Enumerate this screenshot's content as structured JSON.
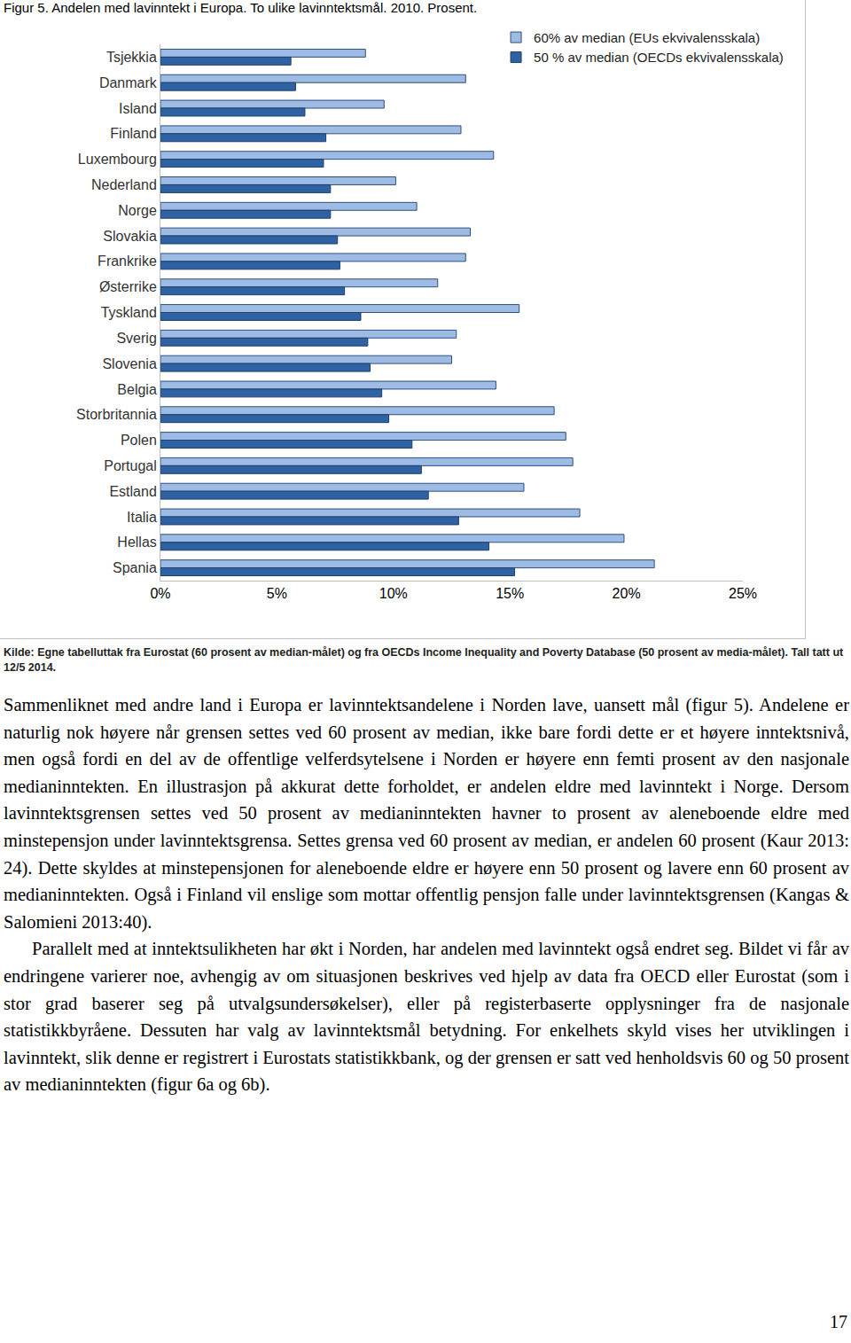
{
  "chart_data": {
    "type": "bar",
    "orientation": "horizontal",
    "title": "Figur 5. Andelen med lavinntekt i Europa. To ulike lavinntektsmål. 2010. Prosent.",
    "categories": [
      "Tsjekkia",
      "Danmark",
      "Island",
      "Finland",
      "Luxembourg",
      "Nederland",
      "Norge",
      "Slovakia",
      "Frankrike",
      "Østerrike",
      "Tyskland",
      "Sverig",
      "Slovenia",
      "Belgia",
      "Storbritannia",
      "Polen",
      "Portugal",
      "Estland",
      "Italia",
      "Hellas",
      "Spania"
    ],
    "series": [
      {
        "name": "60% av median (EUs ekvivalensskala)",
        "color": "#9dbbe3",
        "values": [
          8.8,
          13.1,
          9.6,
          12.9,
          14.3,
          10.1,
          11.0,
          13.3,
          13.1,
          11.9,
          15.4,
          12.7,
          12.5,
          14.4,
          16.9,
          17.4,
          17.7,
          15.6,
          18.0,
          19.9,
          21.2
        ]
      },
      {
        "name": "50 % av median (OECDs ekvivalensskala)",
        "color": "#2f62a3",
        "values": [
          5.6,
          5.8,
          6.2,
          7.1,
          7.0,
          7.3,
          7.3,
          7.6,
          7.7,
          7.9,
          8.6,
          8.9,
          9.0,
          9.5,
          9.8,
          10.8,
          11.2,
          11.5,
          12.8,
          14.1,
          15.2
        ]
      }
    ],
    "xlim": [
      0,
      25
    ],
    "xticks": [
      {
        "value": 0,
        "label": "0%"
      },
      {
        "value": 5,
        "label": "5%"
      },
      {
        "value": 10,
        "label": "10%"
      },
      {
        "value": 15,
        "label": "15%"
      },
      {
        "value": 20,
        "label": "20%"
      },
      {
        "value": 25,
        "label": "25%"
      }
    ],
    "grid": false,
    "legend": "top right"
  },
  "document": {
    "source": "Kilde: Egne tabelluttak fra Eurostat (60 prosent av median-målet) og fra OECDs Income Inequality and Poverty Database (50 prosent av media-målet). Tall tatt ut 12/5 2014.",
    "paragraphs": [
      "Sammenliknet med andre land i Europa er lavinntektsandelene i Norden lave, uansett mål (figur 5). Andelene er naturlig nok høyere når grensen settes ved 60 prosent av median, ikke bare fordi dette er et høyere inntektsnivå, men også fordi en del av de offentlige velferdsytelsene i Norden er høyere enn femti prosent av den nasjonale medianinntekten. En illustrasjon på akkurat dette forholdet, er andelen eldre med lavinntekt i Norge. Dersom lavinntektsgrensen settes ved 50 prosent av medianinntekten havner to prosent av aleneboende eldre med minstepensjon under lavinntektsgrensa. Settes grensa ved 60 prosent av median, er andelen 60 prosent (Kaur 2013: 24). Dette skyldes at minstepensjonen for aleneboende eldre er høyere enn 50 prosent og lavere enn 60 prosent av medianinntekten. Også i Finland vil enslige som mottar offentlig pensjon falle under lavinntektsgrensen (Kangas & Salomieni 2013:40).",
      "Parallelt med at inntektsulikheten har økt i Norden, har andelen med lavinntekt også endret seg. Bildet vi får av endringene varierer noe, avhengig av om situasjonen beskrives ved hjelp av data fra OECD eller Eurostat (som i stor grad baserer seg på utvalgsundersøkelser), eller på registerbaserte opplysninger fra de nasjonale statistikkbyråene. Dessuten har valg av lavinntektsmål betydning. For enkelhets skyld vises her utviklingen i lavinntekt, slik denne er registrert i Eurostats statistikkbank, og der grensen er satt ved henholdsvis 60 og 50 prosent av medianinntekten (figur 6a og 6b)."
    ],
    "page_number": "17"
  }
}
